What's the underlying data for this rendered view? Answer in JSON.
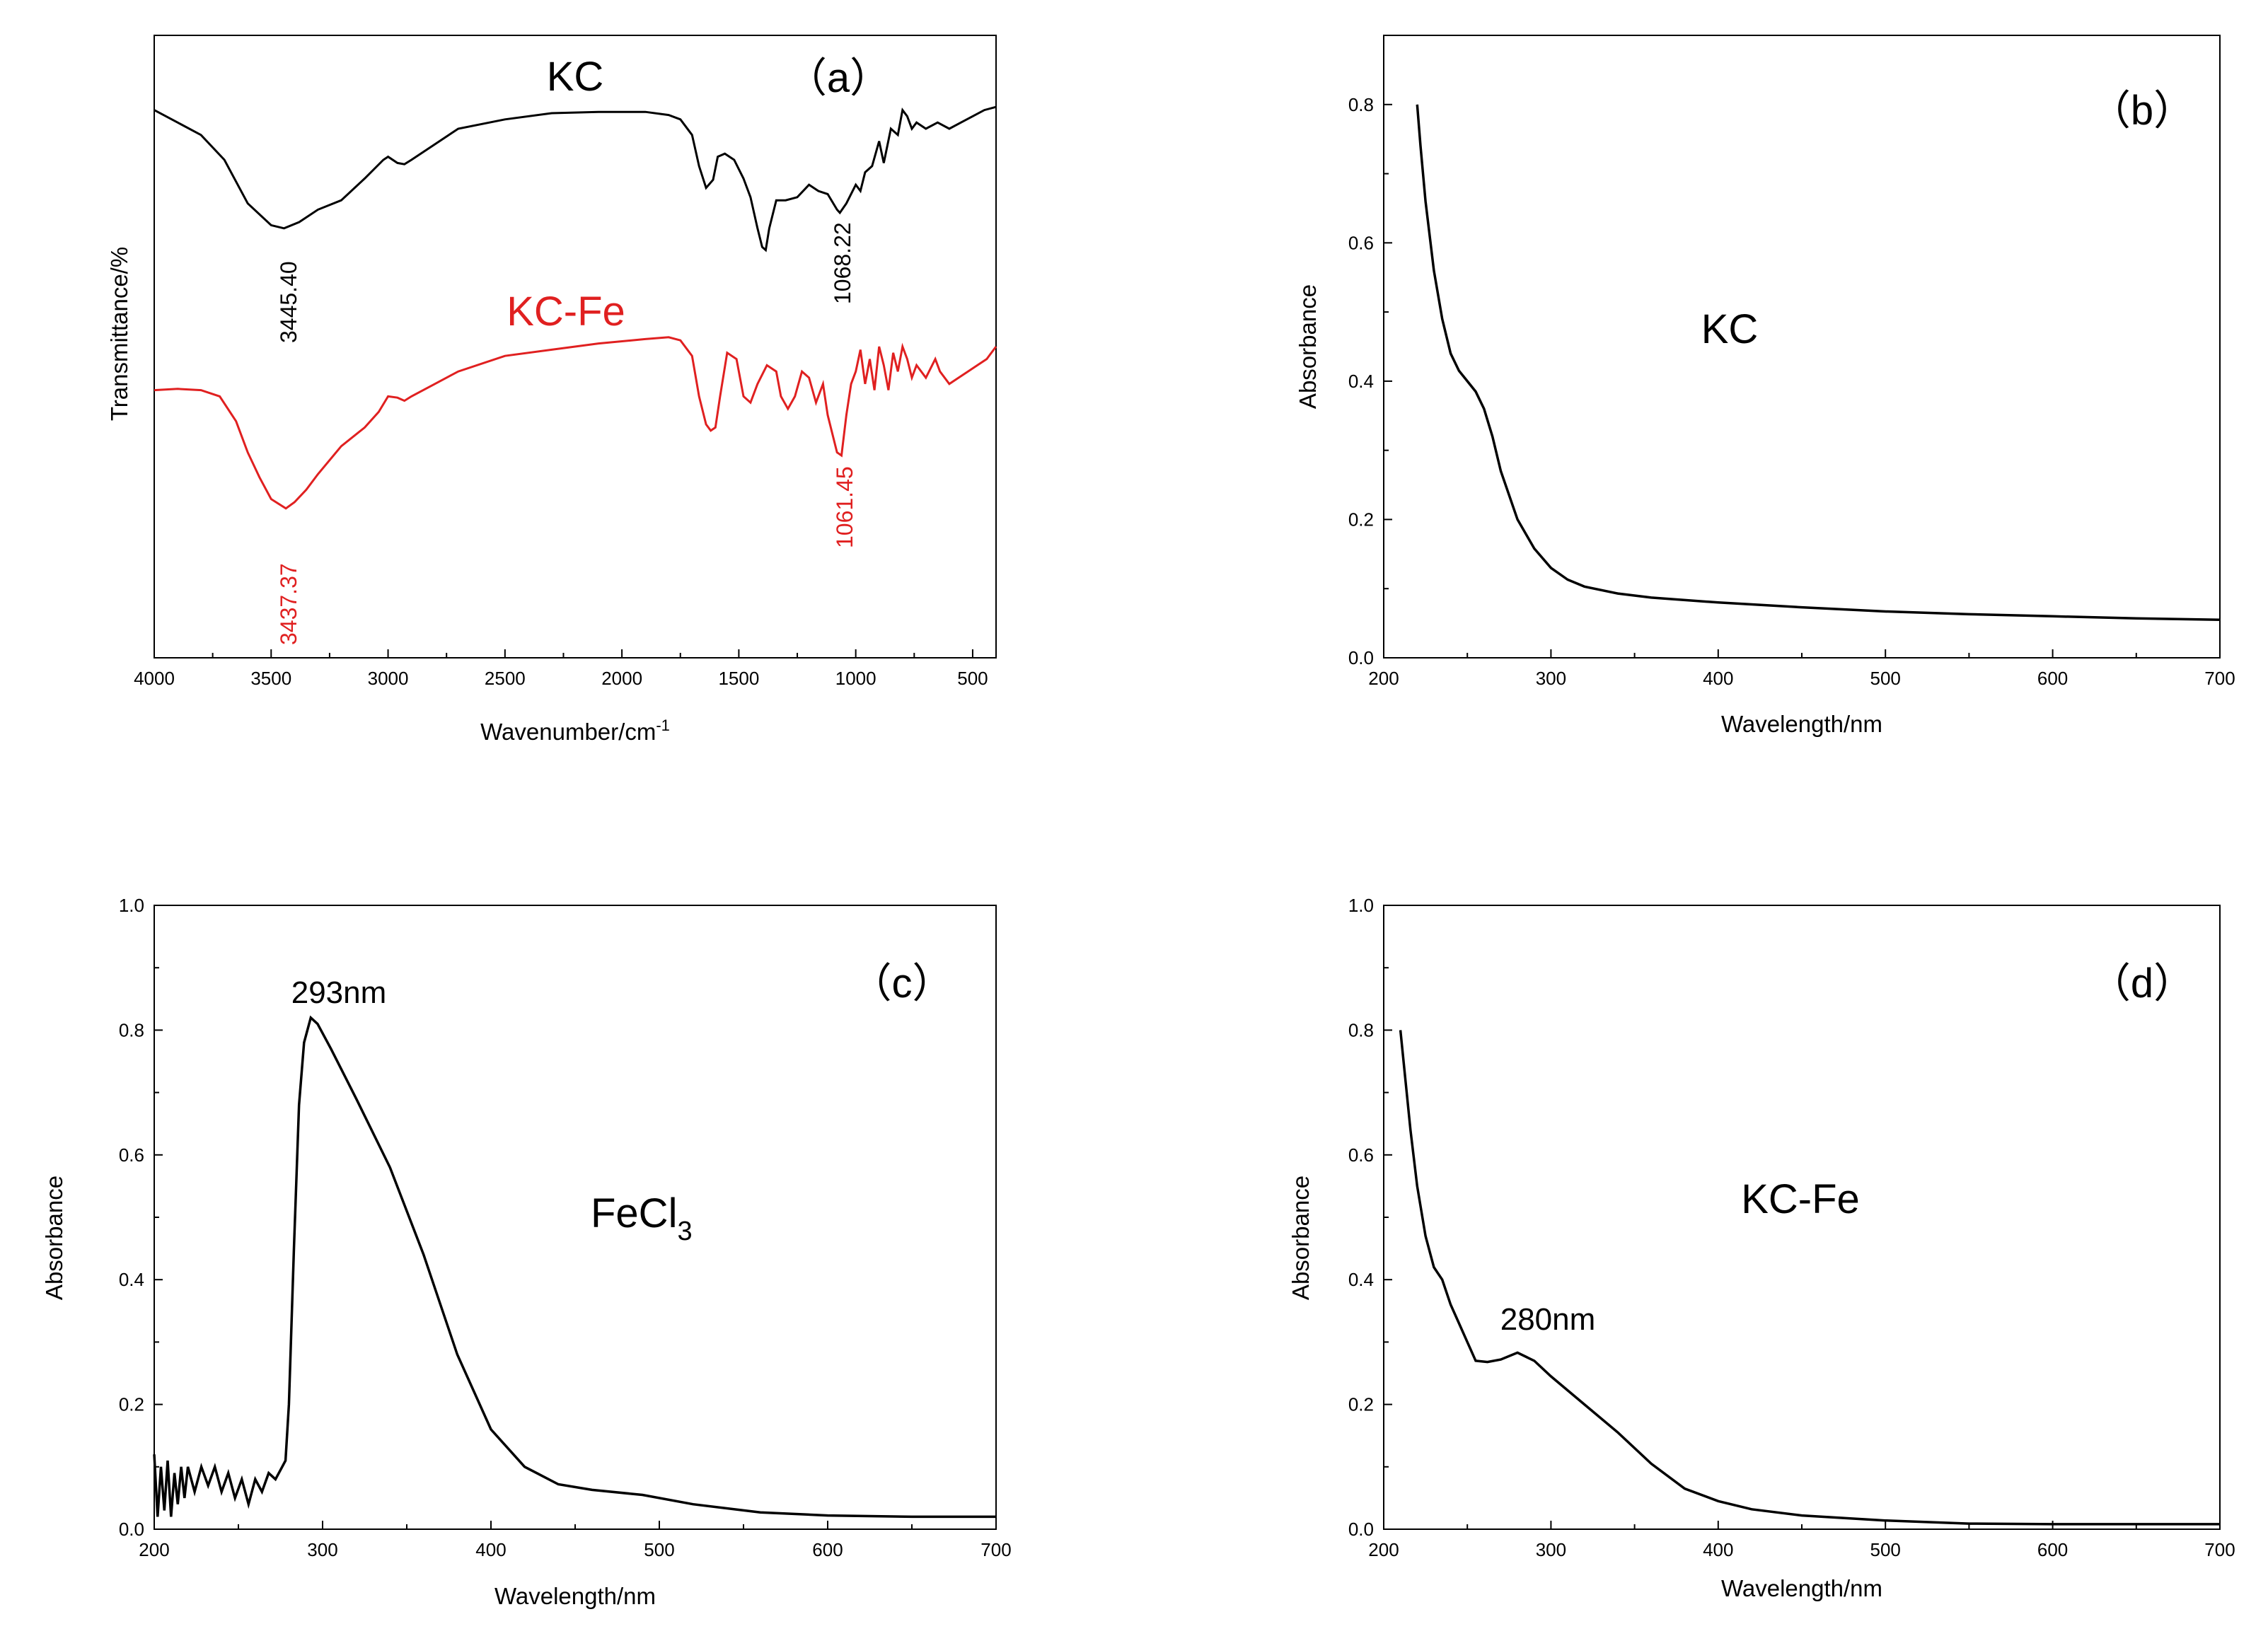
{
  "colors": {
    "black": "#000000",
    "red": "#e02020"
  },
  "chart_data": [
    {
      "id": "a",
      "type": "line",
      "panel_label": "（a）",
      "xlabel": "Wavenumber/cm",
      "xlabel_sup": "-1",
      "ylabel": "Transmittance/%",
      "xlim": [
        4000,
        400
      ],
      "ylim": [
        0,
        100
      ],
      "x_ticks": [
        4000,
        3500,
        3000,
        2500,
        2000,
        1500,
        1000,
        500
      ],
      "x_tick_labels": [
        "4000",
        "3500",
        "3000",
        "2500",
        "2000",
        "1500",
        "1000",
        "500"
      ],
      "series": [
        {
          "name": "KC",
          "label": "KC",
          "color": "#000000",
          "annotations": [
            "3445.40",
            "1068.22"
          ],
          "peaks": [
            3445.4,
            1068.22
          ],
          "points": [
            [
              4000,
              88
            ],
            [
              3900,
              86
            ],
            [
              3800,
              84
            ],
            [
              3700,
              80
            ],
            [
              3600,
              73
            ],
            [
              3500,
              69.5
            ],
            [
              3445,
              69
            ],
            [
              3380,
              70
            ],
            [
              3300,
              72
            ],
            [
              3200,
              73.5
            ],
            [
              3100,
              77
            ],
            [
              3020,
              80
            ],
            [
              3000,
              80.5
            ],
            [
              2960,
              79.5
            ],
            [
              2930,
              79.3
            ],
            [
              2900,
              80
            ],
            [
              2800,
              82.5
            ],
            [
              2700,
              85
            ],
            [
              2500,
              86.5
            ],
            [
              2300,
              87.5
            ],
            [
              2100,
              87.7
            ],
            [
              1900,
              87.7
            ],
            [
              1800,
              87.2
            ],
            [
              1750,
              86.5
            ],
            [
              1700,
              84
            ],
            [
              1670,
              79
            ],
            [
              1640,
              75.5
            ],
            [
              1610,
              76.8
            ],
            [
              1590,
              80.5
            ],
            [
              1560,
              81
            ],
            [
              1520,
              80
            ],
            [
              1480,
              77
            ],
            [
              1450,
              74
            ],
            [
              1420,
              69
            ],
            [
              1400,
              66
            ],
            [
              1385,
              65.5
            ],
            [
              1370,
              69
            ],
            [
              1340,
              73.5
            ],
            [
              1300,
              73.5
            ],
            [
              1250,
              74
            ],
            [
              1200,
              76
            ],
            [
              1160,
              75
            ],
            [
              1120,
              74.5
            ],
            [
              1080,
              72
            ],
            [
              1068,
              71.5
            ],
            [
              1040,
              73
            ],
            [
              1000,
              76
            ],
            [
              980,
              75
            ],
            [
              960,
              78
            ],
            [
              930,
              79
            ],
            [
              900,
              83
            ],
            [
              880,
              79.5
            ],
            [
              850,
              85
            ],
            [
              820,
              84
            ],
            [
              800,
              88
            ],
            [
              780,
              87
            ],
            [
              760,
              85
            ],
            [
              740,
              86
            ],
            [
              700,
              85
            ],
            [
              650,
              86
            ],
            [
              600,
              85
            ],
            [
              550,
              86
            ],
            [
              500,
              87
            ],
            [
              450,
              88
            ],
            [
              400,
              88.5
            ]
          ]
        },
        {
          "name": "KC-Fe",
          "label": "KC-Fe",
          "color": "#e02020",
          "annotations": [
            "3437.37",
            "1061.45"
          ],
          "peaks": [
            3437.37,
            1061.45
          ],
          "points": [
            [
              4000,
              43
            ],
            [
              3900,
              43.2
            ],
            [
              3800,
              43
            ],
            [
              3720,
              42
            ],
            [
              3650,
              38
            ],
            [
              3600,
              33
            ],
            [
              3550,
              29
            ],
            [
              3500,
              25.5
            ],
            [
              3437,
              24
            ],
            [
              3400,
              25
            ],
            [
              3350,
              27
            ],
            [
              3300,
              29.5
            ],
            [
              3200,
              34
            ],
            [
              3100,
              37
            ],
            [
              3040,
              39.5
            ],
            [
              3000,
              42
            ],
            [
              2960,
              41.8
            ],
            [
              2930,
              41.3
            ],
            [
              2900,
              42
            ],
            [
              2800,
              44
            ],
            [
              2700,
              46
            ],
            [
              2500,
              48.5
            ],
            [
              2300,
              49.5
            ],
            [
              2100,
              50.5
            ],
            [
              1900,
              51.2
            ],
            [
              1800,
              51.5
            ],
            [
              1750,
              51
            ],
            [
              1700,
              48.5
            ],
            [
              1670,
              42
            ],
            [
              1640,
              37.5
            ],
            [
              1620,
              36.5
            ],
            [
              1600,
              37
            ],
            [
              1580,
              42
            ],
            [
              1550,
              49
            ],
            [
              1510,
              48
            ],
            [
              1480,
              42
            ],
            [
              1450,
              41
            ],
            [
              1420,
              44
            ],
            [
              1380,
              47
            ],
            [
              1340,
              46
            ],
            [
              1320,
              42
            ],
            [
              1290,
              40
            ],
            [
              1260,
              42
            ],
            [
              1230,
              46
            ],
            [
              1200,
              45
            ],
            [
              1170,
              41
            ],
            [
              1140,
              44
            ],
            [
              1120,
              39
            ],
            [
              1100,
              36
            ],
            [
              1080,
              33
            ],
            [
              1061,
              32.5
            ],
            [
              1040,
              39
            ],
            [
              1020,
              44
            ],
            [
              1000,
              46
            ],
            [
              980,
              49.5
            ],
            [
              960,
              44
            ],
            [
              940,
              48
            ],
            [
              920,
              43
            ],
            [
              900,
              50
            ],
            [
              880,
              47
            ],
            [
              860,
              43
            ],
            [
              840,
              49
            ],
            [
              820,
              46
            ],
            [
              800,
              50
            ],
            [
              780,
              48
            ],
            [
              760,
              45
            ],
            [
              740,
              47
            ],
            [
              700,
              45
            ],
            [
              660,
              48
            ],
            [
              640,
              46
            ],
            [
              600,
              44
            ],
            [
              560,
              45
            ],
            [
              520,
              46
            ],
            [
              480,
              47
            ],
            [
              440,
              48
            ],
            [
              400,
              50
            ]
          ]
        }
      ]
    },
    {
      "id": "b",
      "type": "line",
      "panel_label": "（b）",
      "xlabel": "Wavelength/nm",
      "ylabel": "Absorbance",
      "xlim": [
        200,
        700
      ],
      "ylim": [
        0,
        0.9
      ],
      "x_ticks": [
        200,
        300,
        400,
        500,
        600,
        700
      ],
      "x_tick_labels": [
        "200",
        "300",
        "400",
        "500",
        "600",
        "700"
      ],
      "y_ticks": [
        0,
        0.2,
        0.4,
        0.6,
        0.8
      ],
      "y_tick_labels": [
        "0.0",
        "0.2",
        "0.4",
        "0.6",
        "0.8"
      ],
      "inset_label": "KC",
      "series": [
        {
          "name": "KC",
          "color": "#000000",
          "points": [
            [
              220,
              0.8
            ],
            [
              222,
              0.74
            ],
            [
              225,
              0.66
            ],
            [
              230,
              0.56
            ],
            [
              235,
              0.49
            ],
            [
              240,
              0.44
            ],
            [
              245,
              0.415
            ],
            [
              250,
              0.4
            ],
            [
              255,
              0.385
            ],
            [
              260,
              0.36
            ],
            [
              265,
              0.32
            ],
            [
              270,
              0.27
            ],
            [
              280,
              0.2
            ],
            [
              290,
              0.158
            ],
            [
              300,
              0.13
            ],
            [
              310,
              0.113
            ],
            [
              320,
              0.103
            ],
            [
              340,
              0.093
            ],
            [
              360,
              0.087
            ],
            [
              400,
              0.08
            ],
            [
              450,
              0.073
            ],
            [
              500,
              0.067
            ],
            [
              550,
              0.063
            ],
            [
              600,
              0.06
            ],
            [
              650,
              0.057
            ],
            [
              700,
              0.055
            ]
          ]
        }
      ]
    },
    {
      "id": "c",
      "type": "line",
      "panel_label": "（c）",
      "xlabel": "Wavelength/nm",
      "ylabel": "Absorbance",
      "xlim": [
        200,
        700
      ],
      "ylim": [
        0,
        1.0
      ],
      "x_ticks": [
        200,
        300,
        400,
        500,
        600,
        700
      ],
      "x_tick_labels": [
        "200",
        "300",
        "400",
        "500",
        "600",
        "700"
      ],
      "y_ticks": [
        0,
        0.2,
        0.4,
        0.6,
        0.8,
        1.0
      ],
      "y_tick_labels": [
        "0.0",
        "0.2",
        "0.4",
        "0.6",
        "0.8",
        "1.0"
      ],
      "inset_label": "FeCl",
      "inset_label_sub": "3",
      "peak_label": "293nm",
      "series": [
        {
          "name": "FeCl3",
          "color": "#000000",
          "points": [
            [
              200,
              0.12
            ],
            [
              202,
              0.02
            ],
            [
              204,
              0.1
            ],
            [
              206,
              0.03
            ],
            [
              208,
              0.11
            ],
            [
              210,
              0.02
            ],
            [
              212,
              0.09
            ],
            [
              214,
              0.04
            ],
            [
              216,
              0.1
            ],
            [
              218,
              0.05
            ],
            [
              220,
              0.1
            ],
            [
              224,
              0.06
            ],
            [
              228,
              0.1
            ],
            [
              232,
              0.07
            ],
            [
              236,
              0.1
            ],
            [
              240,
              0.06
            ],
            [
              244,
              0.09
            ],
            [
              248,
              0.05
            ],
            [
              252,
              0.08
            ],
            [
              256,
              0.04
            ],
            [
              260,
              0.08
            ],
            [
              264,
              0.06
            ],
            [
              268,
              0.09
            ],
            [
              272,
              0.08
            ],
            [
              276,
              0.1
            ],
            [
              278,
              0.11
            ],
            [
              280,
              0.2
            ],
            [
              283,
              0.45
            ],
            [
              286,
              0.68
            ],
            [
              289,
              0.78
            ],
            [
              293,
              0.82
            ],
            [
              297,
              0.81
            ],
            [
              305,
              0.77
            ],
            [
              320,
              0.69
            ],
            [
              340,
              0.58
            ],
            [
              360,
              0.44
            ],
            [
              380,
              0.28
            ],
            [
              400,
              0.16
            ],
            [
              420,
              0.1
            ],
            [
              440,
              0.072
            ],
            [
              460,
              0.063
            ],
            [
              490,
              0.055
            ],
            [
              520,
              0.04
            ],
            [
              560,
              0.027
            ],
            [
              600,
              0.022
            ],
            [
              650,
              0.02
            ],
            [
              700,
              0.02
            ]
          ]
        }
      ]
    },
    {
      "id": "d",
      "type": "line",
      "panel_label": "（d）",
      "xlabel": "Wavelength/nm",
      "ylabel": "Absorbance",
      "xlim": [
        200,
        700
      ],
      "ylim": [
        0,
        1.0
      ],
      "x_ticks": [
        200,
        300,
        400,
        500,
        600,
        700
      ],
      "x_tick_labels": [
        "200",
        "300",
        "400",
        "500",
        "600",
        "700"
      ],
      "y_ticks": [
        0,
        0.2,
        0.4,
        0.6,
        0.8,
        1.0
      ],
      "y_tick_labels": [
        "0.0",
        "0.2",
        "0.4",
        "0.6",
        "0.8",
        "1.0"
      ],
      "inset_label": "KC-Fe",
      "peak_label": "280nm",
      "series": [
        {
          "name": "KC-Fe",
          "color": "#000000",
          "points": [
            [
              210,
              0.8
            ],
            [
              213,
              0.72
            ],
            [
              216,
              0.64
            ],
            [
              220,
              0.55
            ],
            [
              225,
              0.47
            ],
            [
              230,
              0.42
            ],
            [
              235,
              0.4
            ],
            [
              240,
              0.36
            ],
            [
              245,
              0.33
            ],
            [
              250,
              0.3
            ],
            [
              255,
              0.27
            ],
            [
              262,
              0.268
            ],
            [
              270,
              0.272
            ],
            [
              280,
              0.283
            ],
            [
              290,
              0.27
            ],
            [
              300,
              0.245
            ],
            [
              320,
              0.2
            ],
            [
              340,
              0.155
            ],
            [
              360,
              0.105
            ],
            [
              380,
              0.065
            ],
            [
              400,
              0.045
            ],
            [
              420,
              0.032
            ],
            [
              450,
              0.022
            ],
            [
              500,
              0.014
            ],
            [
              550,
              0.009
            ],
            [
              600,
              0.008
            ],
            [
              700,
              0.008
            ]
          ]
        }
      ]
    }
  ]
}
